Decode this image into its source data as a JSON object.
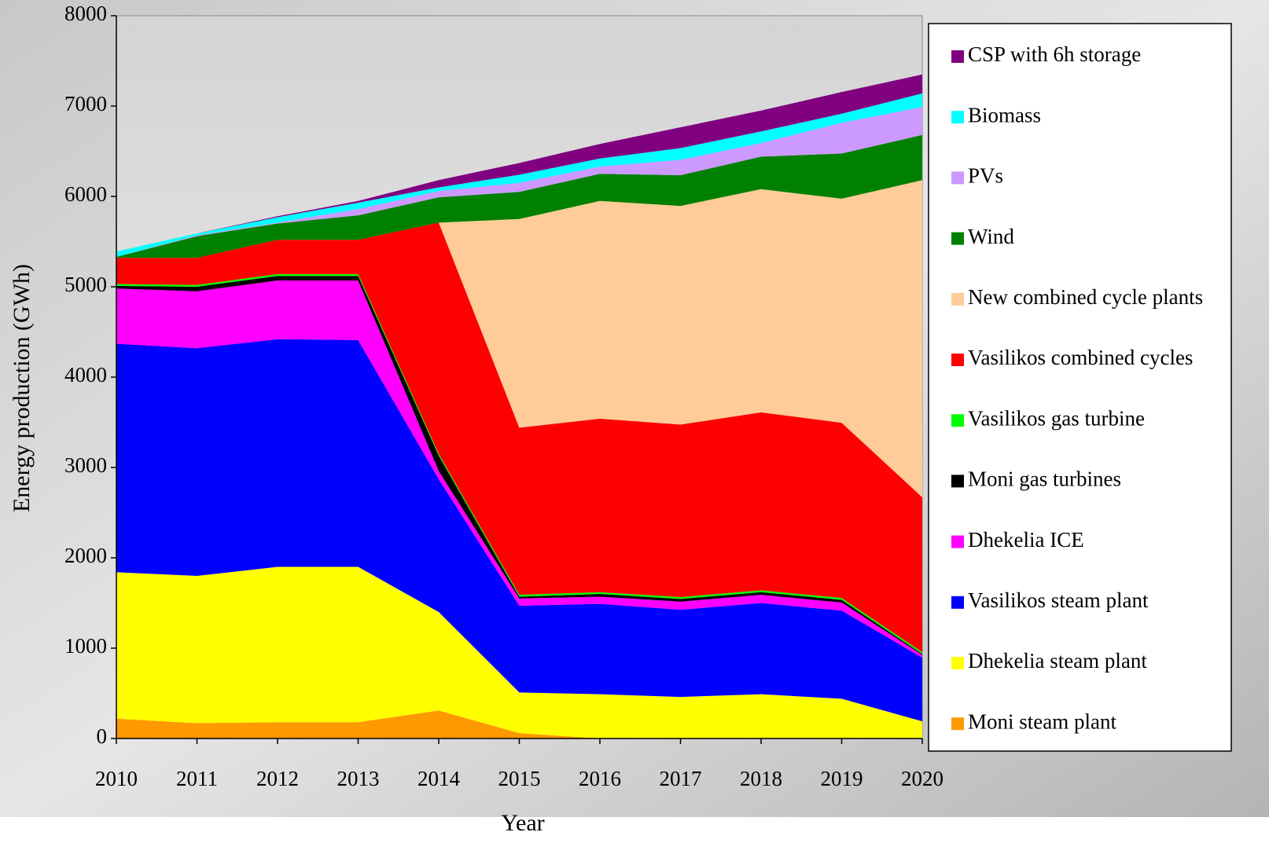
{
  "chart_data": {
    "type": "stacked-area",
    "x_label": "Year",
    "y_label": "Energy production (GWh)",
    "categories": [
      "2010",
      "2011",
      "2012",
      "2013",
      "2014",
      "2015",
      "2016",
      "2017",
      "2018",
      "2019",
      "2020"
    ],
    "ylim": [
      0,
      8000
    ],
    "yticks": [
      0,
      1000,
      2000,
      3000,
      4000,
      5000,
      6000,
      7000,
      8000
    ],
    "legend": "right",
    "series": [
      {
        "name": "Moni steam plant",
        "color": "#ff9900",
        "values": [
          220,
          170,
          180,
          180,
          310,
          60,
          0,
          0,
          0,
          0,
          0
        ]
      },
      {
        "name": "Dhekelia steam plant",
        "color": "#ffff00",
        "values": [
          1620,
          1630,
          1720,
          1720,
          1090,
          450,
          490,
          460,
          490,
          440,
          190
        ]
      },
      {
        "name": "Vasilikos steam plant",
        "color": "#0000ff",
        "values": [
          2530,
          2520,
          2520,
          2510,
          1470,
          960,
          1000,
          965,
          1010,
          975,
          705
        ]
      },
      {
        "name": "Dhekelia ICE",
        "color": "#ff00ff",
        "values": [
          610,
          630,
          650,
          660,
          90,
          80,
          80,
          90,
          90,
          90,
          30
        ]
      },
      {
        "name": "Moni gas turbines",
        "color": "#000000",
        "values": [
          30,
          50,
          50,
          50,
          170,
          20,
          30,
          30,
          30,
          30,
          10
        ]
      },
      {
        "name": "Vasilikos gas turbine",
        "color": "#00ff00",
        "values": [
          20,
          20,
          20,
          20,
          20,
          20,
          20,
          20,
          20,
          20,
          20
        ]
      },
      {
        "name": "Vasilikos combined cycles",
        "color": "#ff0000",
        "values": [
          290,
          300,
          380,
          380,
          2560,
          1850,
          1920,
          1910,
          1970,
          1940,
          1715
        ]
      },
      {
        "name": "New combined cycle plants",
        "color": "#ffcc99",
        "values": [
          0,
          0,
          0,
          0,
          0,
          2310,
          2410,
          2420,
          2470,
          2480,
          3510
        ]
      },
      {
        "name": "Wind",
        "color": "#008000",
        "values": [
          10,
          240,
          180,
          270,
          280,
          300,
          300,
          340,
          360,
          500,
          500
        ]
      },
      {
        "name": "PVs",
        "color": "#cc99ff",
        "values": [
          0,
          10,
          10,
          70,
          70,
          100,
          80,
          170,
          150,
          340,
          310
        ]
      },
      {
        "name": "Biomass",
        "color": "#00ffff",
        "values": [
          60,
          20,
          60,
          70,
          40,
          90,
          90,
          130,
          130,
          100,
          150
        ]
      },
      {
        "name": "CSP with 6h storage",
        "color": "#800080",
        "values": [
          0,
          0,
          10,
          20,
          80,
          130,
          160,
          230,
          230,
          240,
          210
        ]
      }
    ]
  }
}
